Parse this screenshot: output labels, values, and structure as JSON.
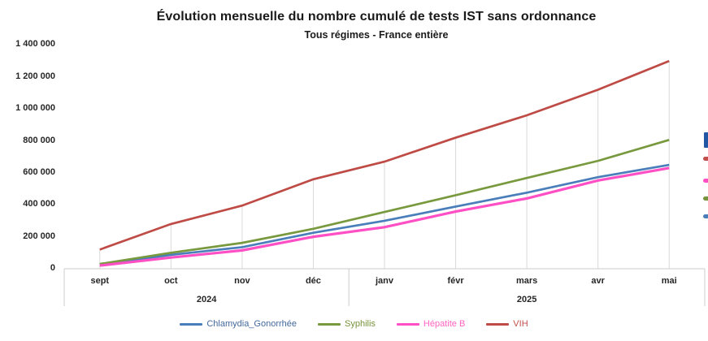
{
  "title": "Évolution mensuelle du nombre cumulé de tests IST sans ordonnance",
  "subtitle": "Tous régimes - France entière",
  "chart_data": {
    "type": "line",
    "title": "Évolution mensuelle du nombre cumulé de tests IST sans ordonnance",
    "subtitle": "Tous régimes - France entière",
    "categories": [
      "sept",
      "oct",
      "nov",
      "déc",
      "janv",
      "févr",
      "mars",
      "avr",
      "mai"
    ],
    "year_groups": [
      {
        "label": "2024",
        "start": 0,
        "count": 4
      },
      {
        "label": "2025",
        "start": 4,
        "count": 5
      }
    ],
    "series": [
      {
        "name": "Chlamydia_Gonorrhée",
        "color": "#4A7EBB",
        "text_color": "#44699D",
        "values": [
          26000,
          87000,
          135000,
          225000,
          300000,
          389000,
          476000,
          573000,
          650000
        ]
      },
      {
        "name": "Syphilis",
        "color": "#78993E",
        "text_color": "#77933C",
        "values": [
          30000,
          100000,
          162000,
          250000,
          355000,
          460000,
          568000,
          675000,
          806000
        ]
      },
      {
        "name": "Hépatite B",
        "color": "#FF4FC5",
        "text_color": "#FF63C5",
        "values": [
          20000,
          70000,
          115000,
          200000,
          260000,
          358000,
          440000,
          552000,
          630000
        ]
      },
      {
        "name": "VIH",
        "color": "#BE4B45",
        "text_color": "#C0504D",
        "values": [
          120000,
          280000,
          395000,
          560000,
          670000,
          820000,
          960000,
          1120000,
          1300000
        ]
      }
    ],
    "ylim": [
      0,
      1400000
    ],
    "ytick_step": 200000,
    "ytick_labels": [
      "0",
      "200 000",
      "400 000",
      "600 000",
      "800 000",
      "1 000 000",
      "1 200 000",
      "1 400 000"
    ],
    "grid": "vertical drop lines at each category, no horizontal gridlines",
    "legend_position": "bottom",
    "colors": {
      "axis_line": "#D6D4D4",
      "drop_line": "#D9D9D9",
      "axis_text": "#262626"
    }
  },
  "right_legend_fragment": {
    "bar_color": "#2257A4",
    "marker_colors": [
      "#C0504D",
      "#FF4FC5",
      "#77933C",
      "#4A7EBB"
    ]
  }
}
